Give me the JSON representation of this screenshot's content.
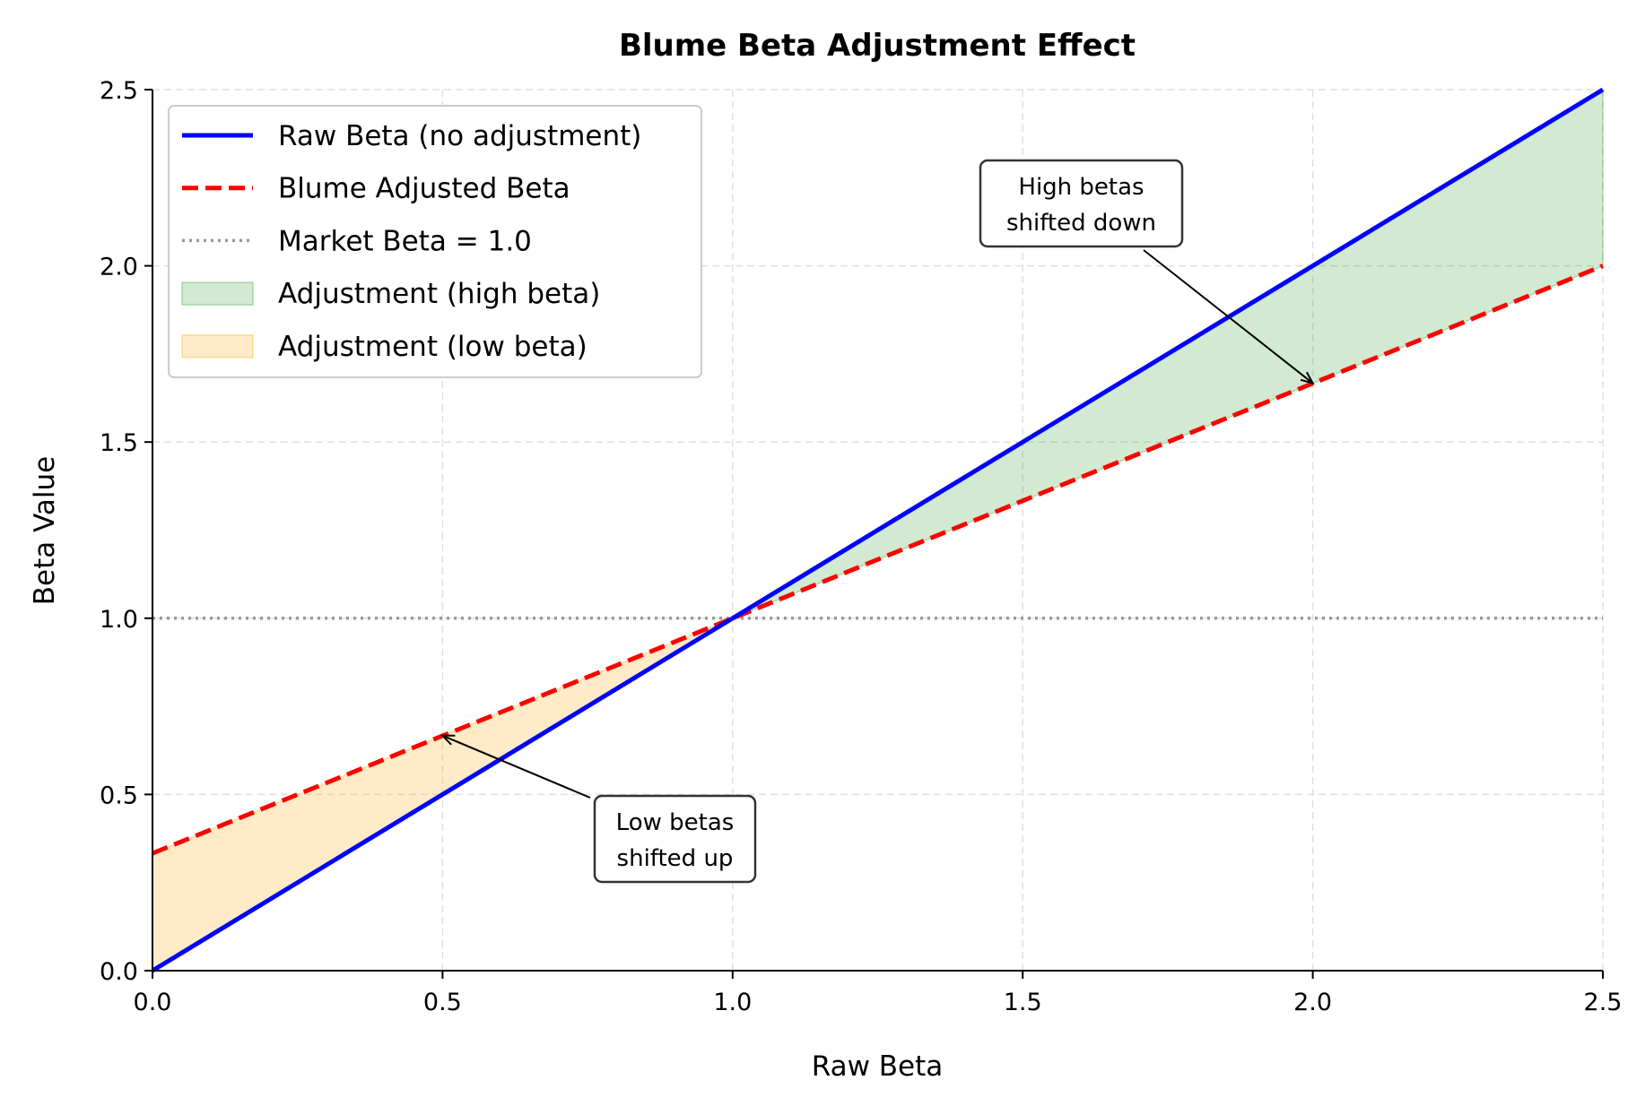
{
  "chart_data": {
    "type": "line",
    "title": "Blume Beta Adjustment Effect",
    "xlabel": "Raw Beta",
    "ylabel": "Beta Value",
    "xlim": [
      0,
      2.5
    ],
    "ylim": [
      0,
      2.5
    ],
    "xticks": [
      "0.0",
      "0.5",
      "1.0",
      "1.5",
      "2.0",
      "2.5"
    ],
    "yticks": [
      "0.0",
      "0.5",
      "1.0",
      "1.5",
      "2.0",
      "2.5"
    ],
    "grid": true,
    "legend_position": "top-left",
    "series": [
      {
        "name": "Raw Beta (no adjustment)",
        "x": [
          0,
          2.5
        ],
        "y": [
          0,
          2.5
        ],
        "color": "#0000ff",
        "style": "solid"
      },
      {
        "name": "Blume Adjusted Beta",
        "x": [
          0,
          2.5
        ],
        "y": [
          0.333,
          2.0
        ],
        "color": "#ff0000",
        "style": "dashed"
      },
      {
        "name": "Market Beta = 1.0",
        "x": [
          0,
          2.5
        ],
        "y": [
          1,
          1
        ],
        "color": "#999999",
        "style": "dotted"
      }
    ],
    "fills": [
      {
        "name": "Adjustment (high beta)",
        "x_range": [
          1,
          2.5
        ],
        "color": "#2ca02c"
      },
      {
        "name": "Adjustment (low beta)",
        "x_range": [
          0,
          1
        ],
        "color": "#ffa500"
      }
    ],
    "annotations": [
      {
        "text": [
          "High betas",
          "shifted down"
        ],
        "target": [
          2.0,
          1.667
        ]
      },
      {
        "text": [
          "Low betas",
          "shifted up"
        ],
        "target": [
          0.5,
          0.667
        ]
      }
    ]
  }
}
